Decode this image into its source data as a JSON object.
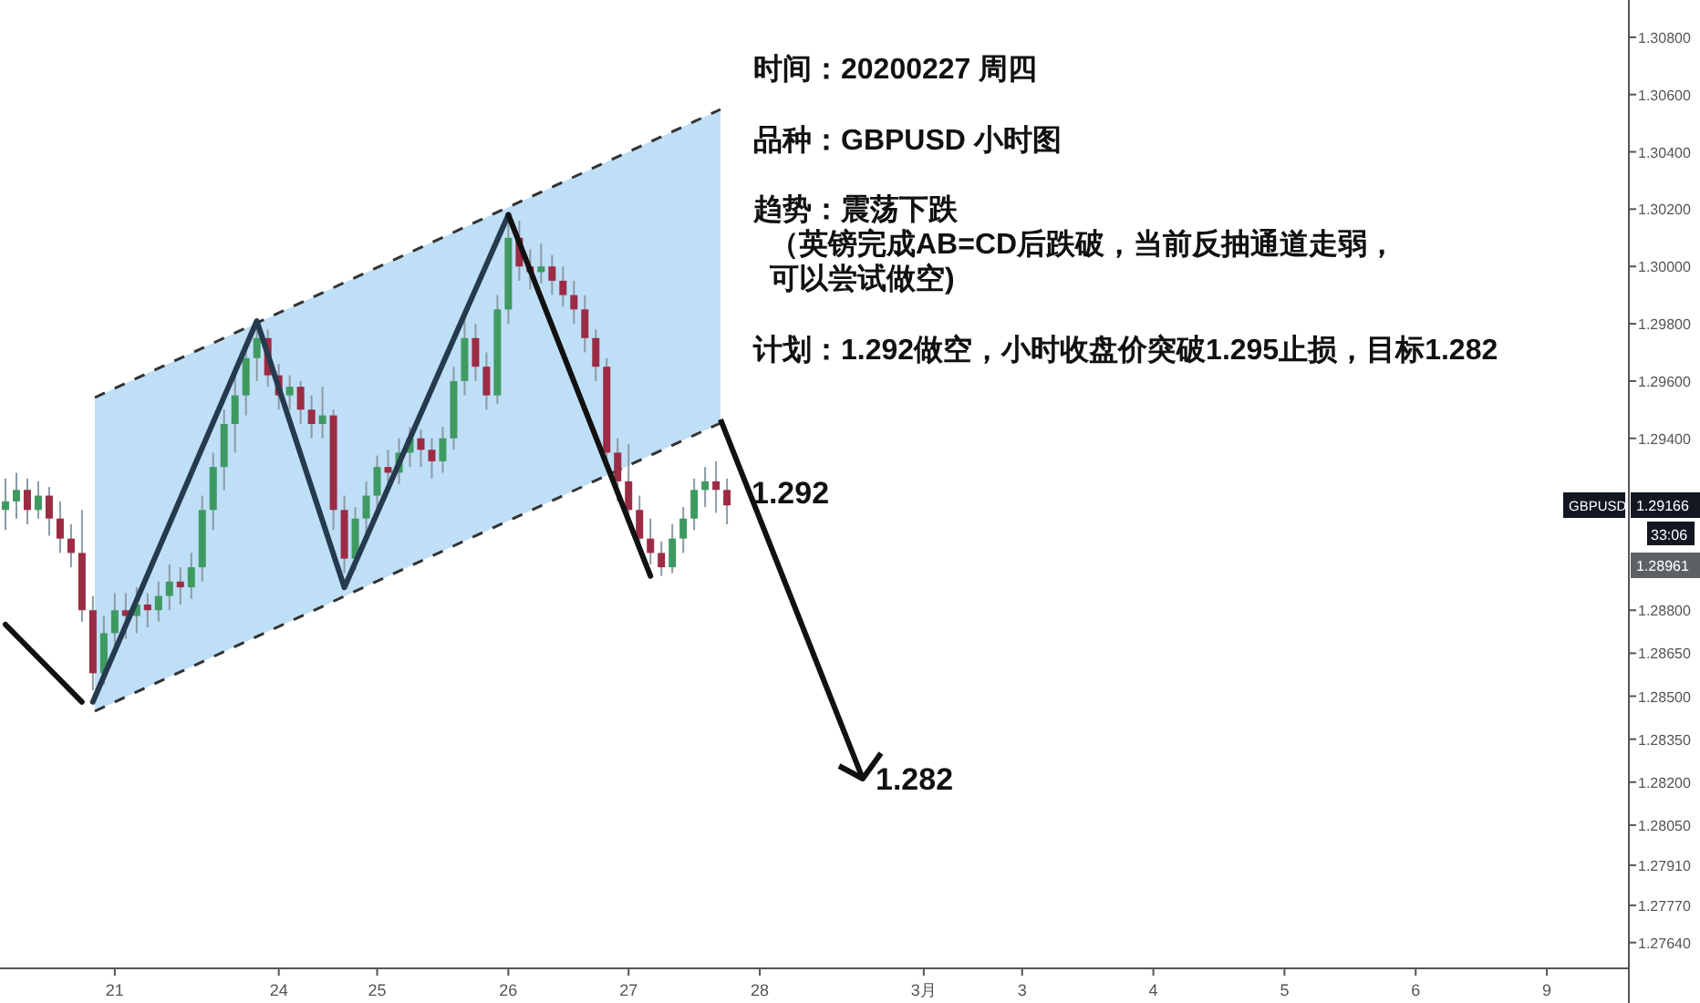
{
  "chart_data": {
    "type": "candlestick",
    "categories": [
      null,
      null,
      null,
      null,
      null,
      null,
      null,
      null,
      null,
      null,
      "21",
      null,
      null,
      null,
      null,
      null,
      null,
      null,
      null,
      null,
      null,
      null,
      null,
      null,
      null,
      "24",
      null,
      null,
      null,
      null,
      null,
      null,
      null,
      null,
      "25",
      null,
      null,
      null,
      null,
      null,
      null,
      null,
      null,
      null,
      null,
      null,
      "26",
      null,
      null,
      null,
      null,
      null,
      null,
      null,
      null,
      null,
      null,
      "27",
      null,
      null,
      null,
      null,
      null,
      null,
      null,
      null,
      null,
      null,
      null,
      "28",
      null,
      null,
      null,
      null,
      null,
      null,
      null,
      null,
      null,
      null,
      null,
      null,
      null,
      null,
      "3月",
      null,
      null,
      null,
      null,
      null,
      null,
      null,
      null,
      "3",
      null,
      null,
      null,
      null,
      null,
      null,
      null,
      null,
      null,
      null,
      null,
      "4",
      null,
      null,
      null,
      null,
      null,
      null,
      null,
      null,
      null,
      null,
      null,
      "5",
      null,
      null,
      null,
      null,
      null,
      null,
      null,
      null,
      null,
      null,
      null,
      "6",
      null,
      null,
      null,
      null,
      null,
      null,
      null,
      null,
      null,
      null,
      null,
      "9",
      null,
      null,
      null,
      null,
      null,
      null,
      null
    ],
    "ohlc": [
      [
        1.2915,
        1.2926,
        1.2908,
        1.2918
      ],
      [
        1.2918,
        1.2928,
        1.2912,
        1.2922
      ],
      [
        1.2922,
        1.2926,
        1.291,
        1.2915
      ],
      [
        1.2915,
        1.2925,
        1.2912,
        1.292
      ],
      [
        1.292,
        1.2923,
        1.2906,
        1.2912
      ],
      [
        1.2912,
        1.2918,
        1.29,
        1.2905
      ],
      [
        1.2905,
        1.291,
        1.2895,
        1.29
      ],
      [
        1.29,
        1.2915,
        1.2876,
        1.288
      ],
      [
        1.288,
        1.2885,
        1.2852,
        1.2858
      ],
      [
        1.2858,
        1.2878,
        1.2854,
        1.2872
      ],
      [
        1.2872,
        1.2886,
        1.2866,
        1.288
      ],
      [
        1.288,
        1.2886,
        1.287,
        1.2878
      ],
      [
        1.2878,
        1.2888,
        1.2872,
        1.2882
      ],
      [
        1.2882,
        1.2886,
        1.2874,
        1.288
      ],
      [
        1.288,
        1.289,
        1.2876,
        1.2885
      ],
      [
        1.2885,
        1.2896,
        1.288,
        1.289
      ],
      [
        1.289,
        1.2895,
        1.2882,
        1.2888
      ],
      [
        1.2888,
        1.29,
        1.2884,
        1.2895
      ],
      [
        1.2895,
        1.292,
        1.289,
        1.2915
      ],
      [
        1.2915,
        1.2935,
        1.2908,
        1.293
      ],
      [
        1.293,
        1.295,
        1.2922,
        1.2945
      ],
      [
        1.2945,
        1.2962,
        1.2935,
        1.2955
      ],
      [
        1.2955,
        1.2972,
        1.2948,
        1.2968
      ],
      [
        1.2968,
        1.298,
        1.296,
        1.2975
      ],
      [
        1.2975,
        1.2978,
        1.2958,
        1.2962
      ],
      [
        1.2962,
        1.2966,
        1.295,
        1.2955
      ],
      [
        1.2955,
        1.2962,
        1.295,
        1.2958
      ],
      [
        1.2958,
        1.296,
        1.2945,
        1.295
      ],
      [
        1.295,
        1.2955,
        1.294,
        1.2945
      ],
      [
        1.2945,
        1.2958,
        1.294,
        1.2948
      ],
      [
        1.2948,
        1.295,
        1.2908,
        1.2915
      ],
      [
        1.2915,
        1.292,
        1.2893,
        1.2898
      ],
      [
        1.2898,
        1.2916,
        1.2894,
        1.2912
      ],
      [
        1.2912,
        1.2925,
        1.2906,
        1.292
      ],
      [
        1.292,
        1.2934,
        1.2914,
        1.293
      ],
      [
        1.293,
        1.2936,
        1.2922,
        1.2928
      ],
      [
        1.2928,
        1.294,
        1.2924,
        1.2935
      ],
      [
        1.2935,
        1.2944,
        1.293,
        1.294
      ],
      [
        1.294,
        1.2943,
        1.293,
        1.2936
      ],
      [
        1.2936,
        1.294,
        1.2926,
        1.2932
      ],
      [
        1.2932,
        1.2944,
        1.2928,
        1.294
      ],
      [
        1.294,
        1.2965,
        1.2936,
        1.296
      ],
      [
        1.296,
        1.2982,
        1.2955,
        1.2975
      ],
      [
        1.2975,
        1.298,
        1.296,
        1.2965
      ],
      [
        1.2965,
        1.297,
        1.295,
        1.2955
      ],
      [
        1.2955,
        1.299,
        1.2952,
        1.2985
      ],
      [
        1.2985,
        1.3017,
        1.298,
        1.301
      ],
      [
        1.301,
        1.3016,
        1.2995,
        1.3
      ],
      [
        1.3,
        1.3006,
        1.2992,
        1.2998
      ],
      [
        1.2998,
        1.3008,
        1.2994,
        1.3
      ],
      [
        1.3,
        1.3004,
        1.299,
        1.2995
      ],
      [
        1.2995,
        1.3,
        1.2986,
        1.299
      ],
      [
        1.299,
        1.2995,
        1.298,
        1.2985
      ],
      [
        1.2985,
        1.299,
        1.297,
        1.2975
      ],
      [
        1.2975,
        1.2978,
        1.296,
        1.2965
      ],
      [
        1.2965,
        1.2968,
        1.293,
        1.2935
      ],
      [
        1.2935,
        1.294,
        1.2918,
        1.2925
      ],
      [
        1.2925,
        1.2938,
        1.291,
        1.2915
      ],
      [
        1.2915,
        1.292,
        1.29,
        1.2905
      ],
      [
        1.2905,
        1.2912,
        1.2896,
        1.29
      ],
      [
        1.29,
        1.2904,
        1.2892,
        1.2895
      ],
      [
        1.2895,
        1.291,
        1.2893,
        1.2905
      ],
      [
        1.2905,
        1.2916,
        1.29,
        1.2912
      ],
      [
        1.2912,
        1.2926,
        1.2908,
        1.2922
      ],
      [
        1.2922,
        1.293,
        1.2916,
        1.2925
      ],
      [
        1.2925,
        1.2932,
        1.2914,
        1.2922
      ],
      [
        1.2922,
        1.2926,
        1.291,
        1.29166
      ],
      null,
      null,
      null,
      null,
      null,
      null,
      null,
      null,
      null,
      null,
      null,
      null,
      null,
      null,
      null,
      null,
      null,
      null,
      null,
      null,
      null,
      null,
      null,
      null,
      null,
      null,
      null,
      null,
      null,
      null,
      null,
      null,
      null,
      null,
      null,
      null,
      null,
      null,
      null,
      null,
      null,
      null,
      null,
      null,
      null,
      null,
      null,
      null,
      null,
      null,
      null,
      null,
      null,
      null,
      null,
      null,
      null,
      null,
      null,
      null,
      null,
      null,
      null,
      null,
      null,
      null,
      null,
      null,
      null,
      null,
      null,
      null,
      null,
      null,
      null,
      null,
      null,
      null,
      null,
      null,
      null,
      null
    ],
    "series": [
      {
        "type": "line",
        "color": "#253a4d",
        "values": [
          null,
          null,
          null,
          null,
          null,
          null,
          null,
          null,
          1.2848,
          null,
          null,
          null,
          null,
          null,
          null,
          null,
          null,
          null,
          null,
          null,
          null,
          null,
          null,
          1.2981,
          null,
          null,
          null,
          null,
          null,
          null,
          null,
          1.2888,
          null,
          null,
          null,
          null,
          null,
          null,
          null,
          null,
          null,
          null,
          null,
          null,
          null,
          null,
          1.3018,
          null,
          null,
          null,
          null,
          null,
          null,
          null,
          null,
          null,
          null,
          null,
          null,
          null,
          null,
          null,
          null,
          null,
          null,
          null,
          null,
          null,
          null,
          null,
          null,
          null,
          null,
          null,
          null,
          null,
          null,
          null,
          null,
          null,
          null,
          null,
          null,
          null,
          null,
          null,
          null,
          null,
          null,
          null,
          null,
          null,
          null,
          null,
          null,
          null,
          null,
          null,
          null,
          null,
          null,
          null,
          null,
          null,
          null,
          null,
          null,
          null,
          null,
          null,
          null,
          null,
          null,
          null,
          null,
          null,
          null,
          null,
          null,
          null,
          null,
          null,
          null,
          null,
          null,
          null,
          null,
          null,
          null,
          null,
          null,
          null,
          null,
          null,
          null,
          null,
          null,
          null,
          null,
          null,
          null,
          null,
          null,
          null,
          null,
          null,
          null,
          null,
          null
        ]
      },
      {
        "type": "line",
        "color": "#111111",
        "values": [
          null,
          null,
          null,
          null,
          null,
          null,
          null,
          null,
          null,
          null,
          null,
          null,
          null,
          null,
          null,
          null,
          null,
          null,
          null,
          null,
          null,
          null,
          null,
          null,
          null,
          null,
          null,
          null,
          null,
          null,
          null,
          null,
          null,
          null,
          null,
          null,
          null,
          null,
          null,
          null,
          null,
          null,
          null,
          null,
          null,
          null,
          1.3018,
          null,
          null,
          null,
          null,
          null,
          null,
          null,
          null,
          null,
          null,
          null,
          null,
          1.2892,
          null,
          null,
          null,
          null,
          null,
          null,
          null,
          null,
          null,
          null,
          null,
          null,
          null,
          null,
          null,
          null,
          null,
          null,
          null,
          null,
          null,
          null,
          null,
          null,
          null,
          null,
          null,
          null,
          null,
          null,
          null,
          null,
          null,
          null,
          null,
          null,
          null,
          null,
          null,
          null,
          null,
          null,
          null,
          null,
          null,
          null,
          null,
          null,
          null,
          null,
          null,
          null,
          null,
          null,
          null,
          null,
          null,
          null,
          null,
          null,
          null,
          null,
          null,
          null,
          null,
          null,
          null,
          null,
          null,
          null,
          null,
          null,
          null,
          null,
          null,
          null,
          null,
          null,
          null,
          null,
          null,
          null,
          null,
          null,
          null,
          null,
          null,
          null,
          null
        ]
      },
      {
        "type": "line",
        "color": "#111111",
        "values": [
          1.2875,
          null,
          null,
          null,
          null,
          null,
          null,
          1.2848,
          null,
          null,
          null,
          null,
          null,
          null,
          null,
          null,
          null,
          null,
          null,
          null,
          null,
          null,
          null,
          null,
          null,
          null,
          null,
          null,
          null,
          null,
          null,
          null,
          null,
          null,
          null,
          null,
          null,
          null,
          null,
          null,
          null,
          null,
          null,
          null,
          null,
          null,
          null,
          null,
          null,
          null,
          null,
          null,
          null,
          null,
          null,
          null,
          null,
          null,
          null,
          null,
          null,
          null,
          null,
          null,
          null,
          null,
          null,
          null,
          null,
          null,
          null,
          null,
          null,
          null,
          null,
          null,
          null,
          null,
          null,
          null,
          null,
          null,
          null,
          null,
          null,
          null,
          null,
          null,
          null,
          null,
          null,
          null,
          null,
          null,
          null,
          null,
          null,
          null,
          null,
          null,
          null,
          null,
          null,
          null,
          null,
          null,
          null,
          null,
          null,
          null,
          null,
          null,
          null,
          null,
          null,
          null,
          null,
          null,
          null,
          null,
          null,
          null,
          null,
          null,
          null,
          null,
          null,
          null,
          null,
          null,
          null,
          null,
          null,
          null,
          null,
          null,
          null,
          null,
          null,
          null,
          null,
          null,
          null,
          null,
          null,
          null,
          null,
          null,
          null
        ]
      }
    ],
    "ylim": [
      1.2755,
      1.3093
    ],
    "yticks": [
      {
        "value": 1.308,
        "label": "1.30800"
      },
      {
        "value": 1.306,
        "label": "1.30600"
      },
      {
        "value": 1.304,
        "label": "1.30400"
      },
      {
        "value": 1.302,
        "label": "1.30200"
      },
      {
        "value": 1.3,
        "label": "1.30000"
      },
      {
        "value": 1.298,
        "label": "1.29800"
      },
      {
        "value": 1.296,
        "label": "1.29600"
      },
      {
        "value": 1.294,
        "label": "1.29400"
      },
      {
        "value": 1.288,
        "label": "1.28800"
      },
      {
        "value": 1.2865,
        "label": "1.28650"
      },
      {
        "value": 1.285,
        "label": "1.28500"
      },
      {
        "value": 1.2835,
        "label": "1.28350"
      },
      {
        "value": 1.282,
        "label": "1.28200"
      },
      {
        "value": 1.2805,
        "label": "1.28050"
      },
      {
        "value": 1.2791,
        "label": "1.27910"
      },
      {
        "value": 1.2777,
        "label": "1.27770"
      },
      {
        "value": 1.2764,
        "label": "1.27640"
      }
    ],
    "annotations": [
      "时间：20200227  周四",
      "品种：GBPUSD  小时图",
      "趋势：震荡下跌",
      "（英镑完成AB=CD后跌破，当前反抽通道走弱，",
      "可以尝试做空)",
      "计划：1.292做空，小时收盘价突破1.295止损，目标1.282",
      "1.292",
      "1.282",
      "1.29166",
      "GBPUSD",
      "33:06",
      "1.28961"
    ]
  }
}
